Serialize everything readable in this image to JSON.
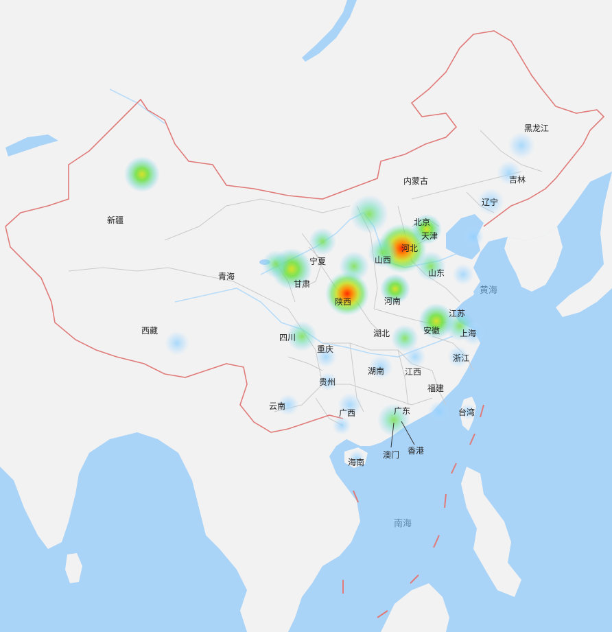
{
  "map": {
    "colors": {
      "sea": "#a9d3f7",
      "land": "#f2f2f2",
      "province_border": "#c9c9c9",
      "national_border": "#e07a78",
      "river": "#b8dcf8",
      "label": "#222222",
      "sea_label": "#5f88ad"
    },
    "province_labels": {
      "heilongjiang": "黑龙江",
      "jilin": "吉林",
      "liaoning": "辽宁",
      "neimenggu": "内蒙古",
      "beijing": "北京",
      "tianjin": "天津",
      "hebei": "河北",
      "shanxi": "山西",
      "shandong": "山东",
      "ningxia": "宁夏",
      "gansu": "甘肃",
      "shaanxi": "陕西",
      "henan": "河南",
      "xinjiang": "新疆",
      "qinghai": "青海",
      "xizang": "西藏",
      "sichuan": "四川",
      "chongqing": "重庆",
      "hubei": "湖北",
      "anhui": "安徽",
      "jiangsu": "江苏",
      "shanghai": "上海",
      "zhejiang": "浙江",
      "hunan": "湖南",
      "jiangxi": "江西",
      "guizhou": "贵州",
      "fujian": "福建",
      "yunnan": "云南",
      "guangxi": "广西",
      "guangdong": "广东",
      "taiwan": "台湾",
      "hainan": "海南",
      "aomen": "澳门",
      "xianggang": "香港"
    },
    "sea_labels": {
      "huanghai": "黄海",
      "nanhai": "南海"
    },
    "heatmap_levels": {
      "shaanxi": 1.0,
      "hebei": 0.95,
      "xinjiang": 0.55,
      "gansu": 0.6,
      "henan": 0.55,
      "anhui": 0.55,
      "beijing": 0.5,
      "inner_mongolia_south": 0.5,
      "shanxi": 0.45,
      "tianjin": 0.45,
      "sichuan": 0.45,
      "guangdong": 0.45,
      "ningxia": 0.45,
      "shandong": 0.4,
      "hubei": 0.4,
      "jiangsu": 0.4,
      "shanghai": 0.35,
      "heilongjiang": 0.3,
      "liaoning": 0.3,
      "jilin": 0.25,
      "xizang": 0.15,
      "chongqing": 0.2,
      "hunan": 0.2,
      "zhejiang": 0.2,
      "jiangxi": 0.15,
      "guangxi": 0.15,
      "yunnan": 0.12,
      "fujian": 0.12,
      "guizhou": 0.12,
      "taiwan": 0.1,
      "hainan": 0.1,
      "bohai": 0.2,
      "qinghai": 0.25
    }
  }
}
